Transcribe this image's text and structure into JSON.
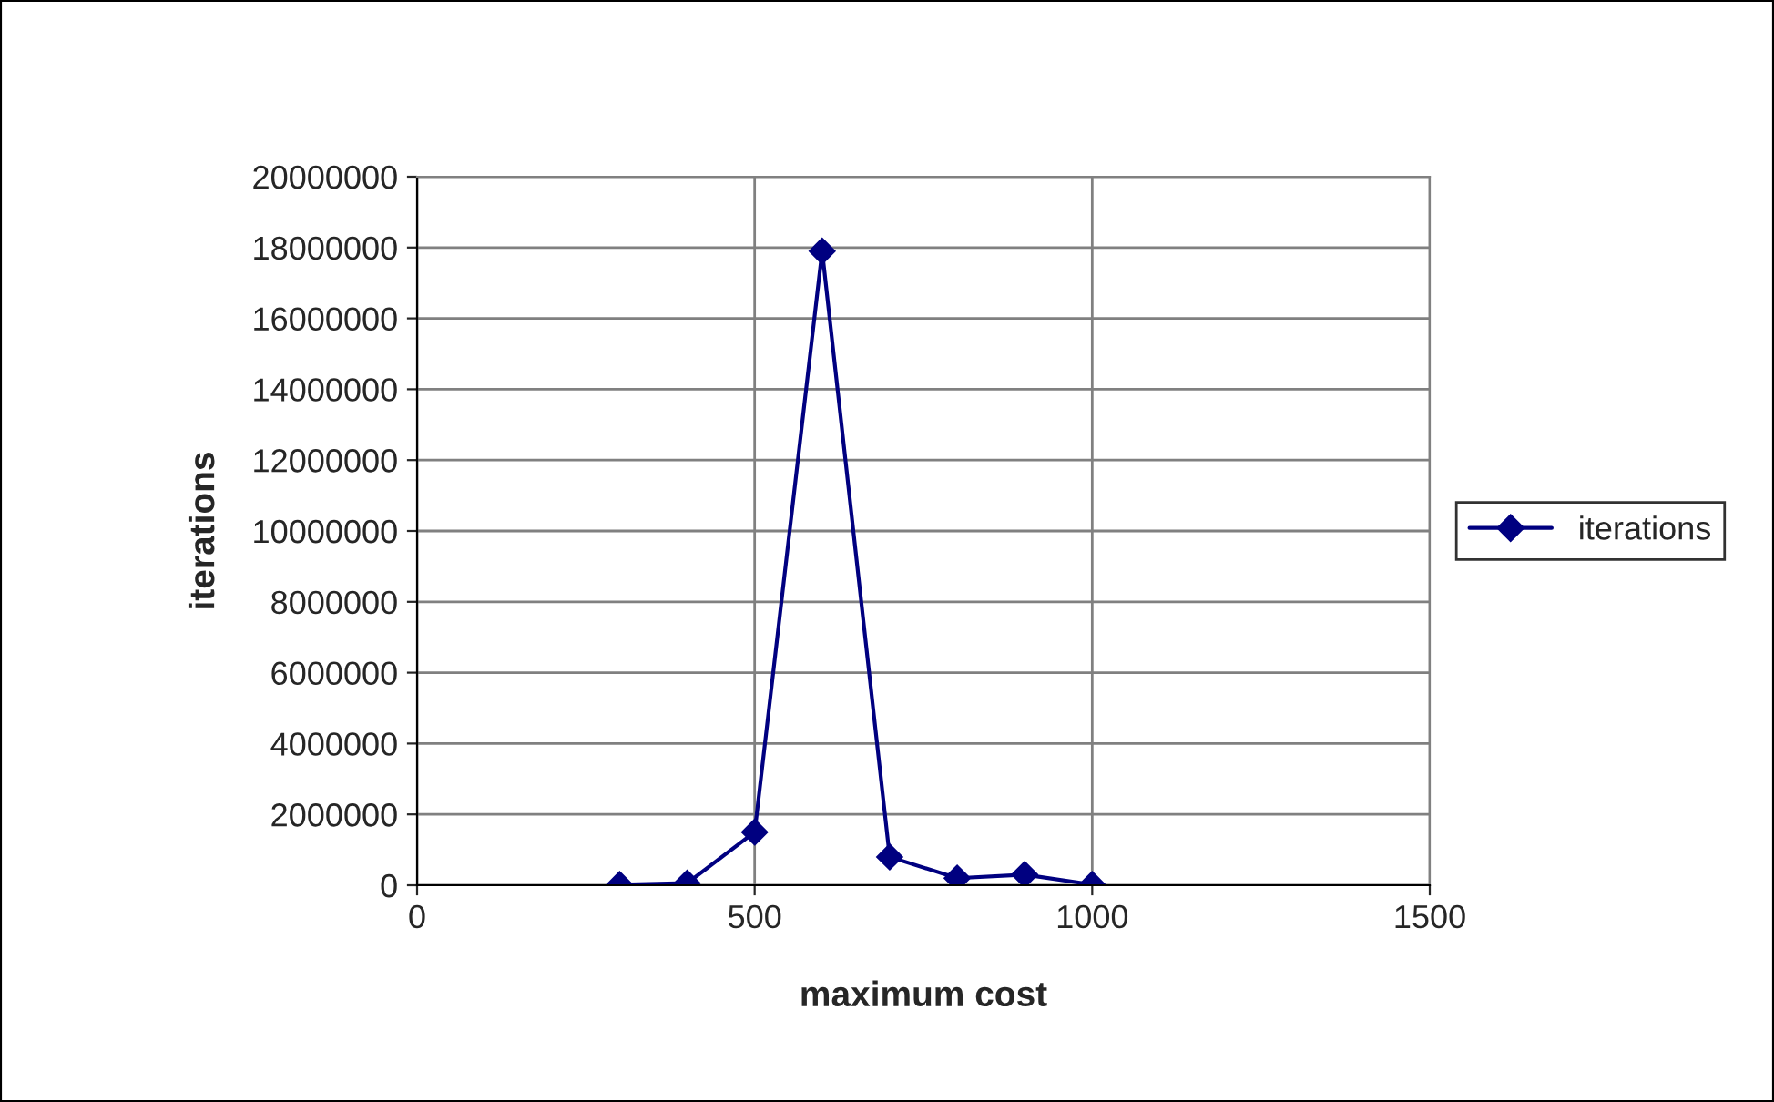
{
  "chart_data": {
    "type": "line",
    "xlabel": "maximum cost",
    "ylabel": "iterations",
    "x": [
      300,
      400,
      500,
      600,
      700,
      800,
      900,
      1000
    ],
    "series": [
      {
        "name": "iterations",
        "color": "#000080",
        "values": [
          20000,
          60000,
          1500000,
          17900000,
          800000,
          200000,
          300000,
          20000
        ]
      }
    ],
    "xlim": [
      0,
      1500
    ],
    "xticks": [
      0,
      500,
      1000,
      1500
    ],
    "ylim": [
      0,
      20000000
    ],
    "yticks": [
      0,
      2000000,
      4000000,
      6000000,
      8000000,
      10000000,
      12000000,
      14000000,
      16000000,
      18000000,
      20000000
    ],
    "grid": true,
    "legend": "right",
    "marker": "diamond",
    "line_style": "solid"
  }
}
